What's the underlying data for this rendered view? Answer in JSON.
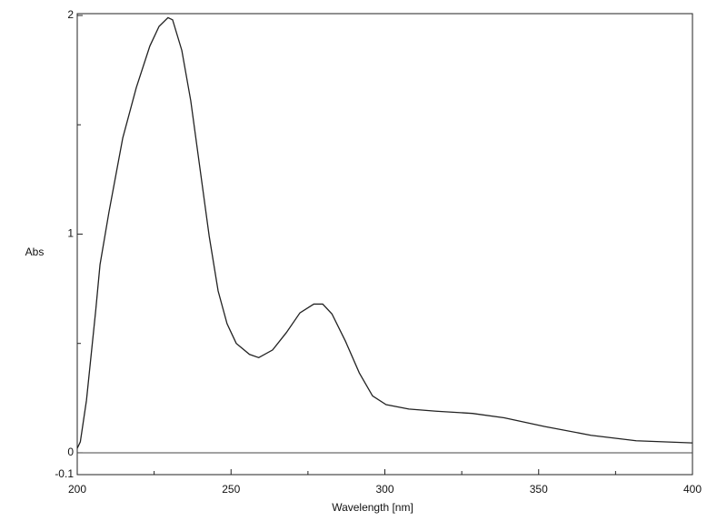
{
  "chart_data": {
    "type": "line",
    "x_label": "Wavelength [nm]",
    "y_label": "Abs",
    "x": [
      200,
      201,
      203,
      206,
      207.4,
      210.3,
      214.8,
      219.2,
      223.6,
      226.6,
      229.5,
      231,
      234,
      236.9,
      239.9,
      242.9,
      245.8,
      248.7,
      251.7,
      256,
      259,
      263.5,
      268,
      272.4,
      276.9,
      279.8,
      282.8,
      287.2,
      291.7,
      296,
      300.4,
      307.8,
      316.7,
      328.5,
      338.8,
      352,
      367,
      381.7,
      400
    ],
    "series": [
      {
        "name": "Abs",
        "color": "#222222",
        "values": [
          0.02,
          0.05,
          0.24,
          0.65,
          0.86,
          1.1,
          1.44,
          1.67,
          1.86,
          1.95,
          1.99,
          1.98,
          1.84,
          1.61,
          1.3,
          0.99,
          0.74,
          0.59,
          0.5,
          0.45,
          0.435,
          0.47,
          0.55,
          0.64,
          0.68,
          0.68,
          0.635,
          0.51,
          0.365,
          0.26,
          0.22,
          0.2,
          0.19,
          0.18,
          0.16,
          0.12,
          0.08,
          0.055,
          0.045
        ]
      }
    ],
    "xlim": [
      200,
      400
    ],
    "xticks": [
      200,
      250,
      300,
      350,
      400
    ],
    "xminorticks": [
      225,
      275,
      325,
      375
    ],
    "ylim": [
      -0.1,
      2
    ],
    "yticks": [
      -0.1,
      0,
      1,
      2
    ],
    "yminorticks": [
      0.5,
      1.5
    ],
    "zero_line": 0,
    "grid": false
  }
}
